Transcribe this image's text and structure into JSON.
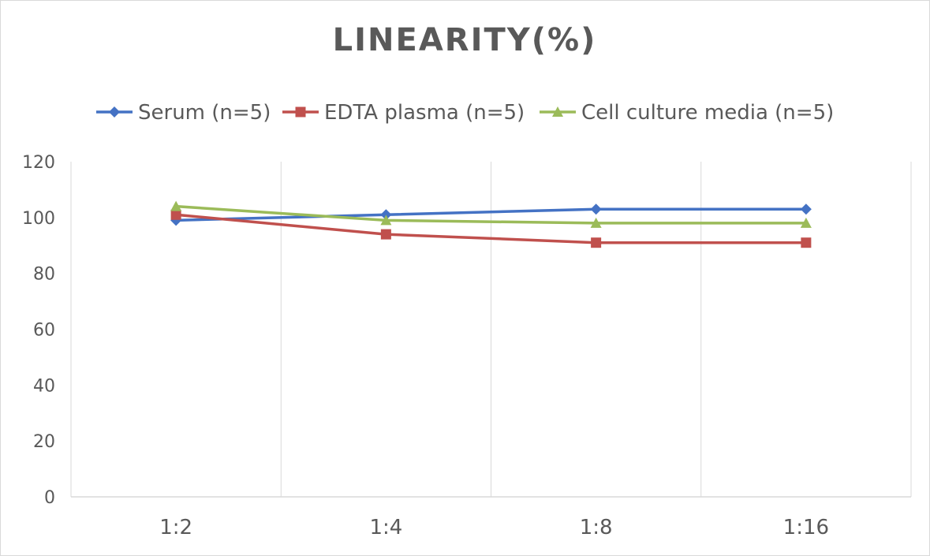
{
  "chart_data": {
    "type": "line",
    "title": "LINEARITY(%)",
    "categories": [
      "1:2",
      "1:4",
      "1:8",
      "1:16"
    ],
    "ylim": [
      0,
      120
    ],
    "yticks": [
      0,
      20,
      40,
      60,
      80,
      100,
      120
    ],
    "grid": "vertical",
    "legend_position": "top",
    "series": [
      {
        "name": "Serum (n=5)",
        "values": [
          99,
          101,
          103,
          103
        ],
        "color": "#4472c4",
        "marker": "diamond"
      },
      {
        "name": "EDTA plasma (n=5)",
        "values": [
          101,
          94,
          91,
          91
        ],
        "color": "#c0504d",
        "marker": "square"
      },
      {
        "name": "Cell culture media (n=5)",
        "values": [
          104,
          99,
          98,
          98
        ],
        "color": "#9bbb59",
        "marker": "triangle"
      }
    ]
  }
}
